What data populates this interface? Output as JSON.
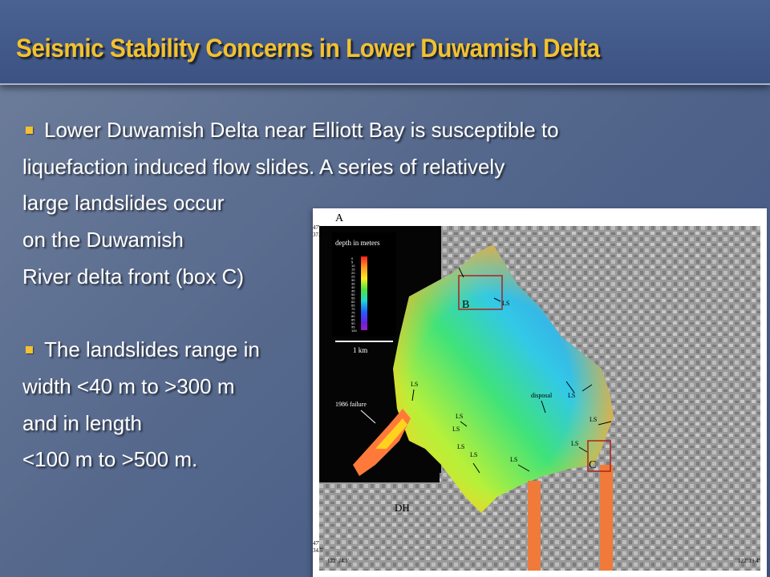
{
  "slide": {
    "title": "Seismic Stability Concerns in Lower Duwamish Delta",
    "paragraphs": [
      {
        "bullet": true,
        "lines": [
          "Lower Duwamish Delta near Elliott Bay is susceptible to",
          "liquefaction induced flow slides. A series of relatively",
          "large landslides occur",
          "on the Duwamish",
          "River delta front (box C)"
        ]
      },
      {
        "bullet": true,
        "lines": [
          "The landslides range in",
          "width <40 m to >300 m",
          "and in length",
          "<100 m to >500 m."
        ]
      }
    ]
  },
  "colors": {
    "title": "#f2c12e",
    "bullet": "#f2c12e",
    "text": "#ffffff",
    "background": "#55688c"
  },
  "map": {
    "panel_letter": "A",
    "legend_title": "depth in meters",
    "legend_ticks": [
      "0",
      "5",
      "10",
      "15",
      "20",
      "25",
      "30",
      "35",
      "40",
      "45",
      "50",
      "55",
      "60",
      "65",
      "70",
      "75",
      "80",
      "85",
      "90",
      "95",
      "100"
    ],
    "scale_label": "1 km",
    "failure_label": "1986 failure",
    "disposal_label": "disposal",
    "landslide_label": "LS",
    "box_labels": [
      "B",
      "C"
    ],
    "area_label": "DH",
    "lat_top_deg": "47'",
    "lat_top_min": "37.7'",
    "lat_bottom_deg": "47'",
    "lat_bottom_min": "34.5'",
    "lon_left": "122' 24.1'",
    "lon_right": "122' 19.4'"
  }
}
